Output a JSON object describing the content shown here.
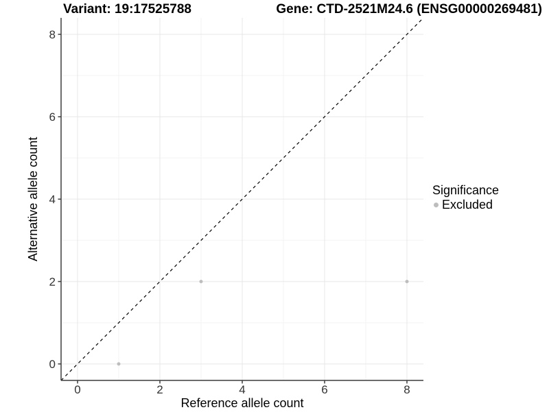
{
  "chart_data": {
    "type": "scatter",
    "title_variant": "Variant: 19:17525788",
    "title_gene": "Gene: CTD-2521M24.6 (ENSG00000269481)",
    "xlabel": "Reference allele count",
    "ylabel": "Alternative allele count",
    "xlim": [
      -0.4,
      8.4
    ],
    "ylim": [
      -0.4,
      8.4
    ],
    "xticks": [
      0,
      2,
      4,
      6,
      8
    ],
    "yticks": [
      0,
      2,
      4,
      6,
      8
    ],
    "minor_ticks": [
      1,
      3,
      5,
      7
    ],
    "grid": "major and minor, light gray on white",
    "abline": {
      "slope": 1,
      "intercept": 0,
      "linetype": "dashed",
      "color": "#000000"
    },
    "series": [
      {
        "name": "Excluded",
        "color": "#BDBDBD",
        "marker": "circle",
        "points": [
          [
            1,
            0
          ],
          [
            3,
            2
          ],
          [
            8,
            2
          ]
        ]
      }
    ],
    "legend": {
      "title": "Significance",
      "position": "right",
      "items": [
        {
          "label": "Excluded",
          "color": "#BDBDBD",
          "marker": "circle"
        }
      ]
    },
    "colors": {
      "grid_major": "#E7E7E7",
      "grid_minor": "#F3F3F3",
      "axis": "#3C3C3C",
      "tick_text": "#333333",
      "point": "#BDBDBD"
    }
  }
}
